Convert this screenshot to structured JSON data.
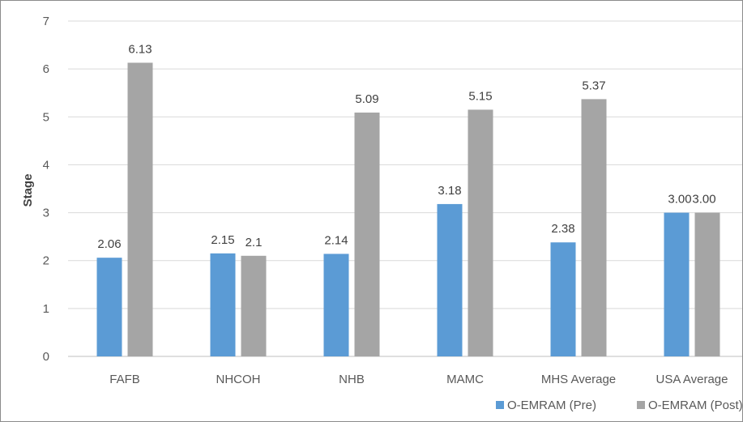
{
  "chart_data": {
    "type": "bar",
    "title": "",
    "xlabel": "",
    "ylabel": "Stage",
    "ylim": [
      0,
      7
    ],
    "yticks": [
      0,
      1,
      2,
      3,
      4,
      5,
      6,
      7
    ],
    "grid": true,
    "legend": "bottom-right",
    "categories": [
      "FAFB",
      "NHCOH",
      "NHB",
      "MAMC",
      "MHS Average",
      "USA Average"
    ],
    "series": [
      {
        "name": "O-EMRAM (Pre)",
        "color": "#5b9bd5",
        "values": [
          2.06,
          2.15,
          2.14,
          3.18,
          2.38,
          3.0
        ],
        "labels": [
          "2.06",
          "2.15",
          "2.14",
          "3.18",
          "2.38",
          "3.00"
        ]
      },
      {
        "name": "O-EMRAM (Post)",
        "color": "#a5a5a5",
        "values": [
          6.13,
          2.1,
          5.09,
          5.15,
          5.37,
          3.0
        ],
        "labels": [
          "6.13",
          "2.1",
          "5.09",
          "5.15",
          "5.37",
          "3.00"
        ]
      }
    ]
  }
}
